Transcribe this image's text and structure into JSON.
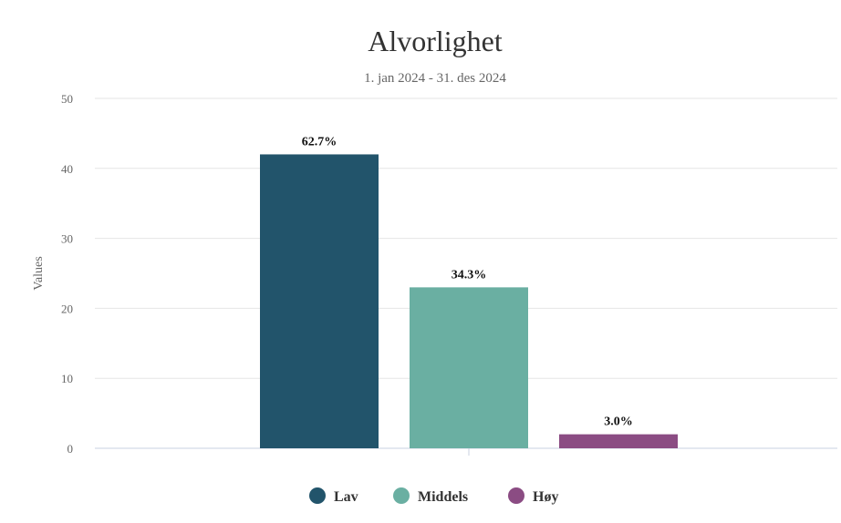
{
  "chart_data": {
    "type": "bar",
    "title": "Alvorlighet",
    "subtitle": "1. jan 2024 - 31. des 2024",
    "ylabel": "Values",
    "xlabel": "",
    "ylim": [
      0,
      50
    ],
    "yticks": [
      0,
      10,
      20,
      30,
      40,
      50
    ],
    "grid": true,
    "legend_position": "bottom-center",
    "series": [
      {
        "name": "Lav",
        "value": 42,
        "label": "62.7%",
        "color": "#22546b"
      },
      {
        "name": "Middels",
        "value": 23,
        "label": "34.3%",
        "color": "#6aafa2"
      },
      {
        "name": "Høy",
        "value": 2,
        "label": "3.0%",
        "color": "#8b4c83"
      }
    ]
  }
}
